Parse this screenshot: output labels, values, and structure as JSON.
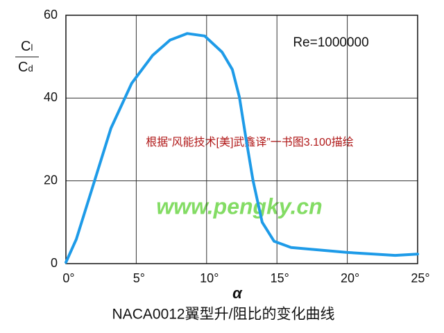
{
  "chart_data": {
    "type": "line",
    "title": "NACA0012翼型升/阻比的变化曲线",
    "x_label": "α",
    "y_label": {
      "numerator": {
        "base": "C",
        "sub": "l"
      },
      "denominator": {
        "base": "C",
        "sub": "d"
      }
    },
    "annotations": {
      "reynolds": "Re=1000000",
      "source": "根据“风能技术[美]武鑫译”一书图3.100描绘",
      "watermark": "www.pengky.cn"
    },
    "series": [
      {
        "color": "#1e9be8",
        "x": [
          0,
          0.74,
          1.97,
          3.2,
          4.68,
          6.16,
          7.4,
          8.63,
          9.86,
          11.1,
          11.83,
          12.33,
          12.8,
          13.3,
          13.95,
          14.8,
          16.0,
          20.0,
          23.4,
          25.0
        ],
        "values": [
          0.3,
          5.9,
          19.3,
          32.7,
          43.6,
          50.3,
          54,
          55.6,
          55,
          51.1,
          46.9,
          40.2,
          30.2,
          20.1,
          10,
          5.4,
          3.9,
          2.7,
          2.0,
          2.3
        ]
      }
    ],
    "xlim": [
      0,
      25
    ],
    "xticks": [
      {
        "value": 0,
        "label": "0°"
      },
      {
        "value": 5,
        "label": "5°"
      },
      {
        "value": 10,
        "label": "10°"
      },
      {
        "value": 15,
        "label": "15°"
      },
      {
        "value": 20,
        "label": "20°"
      },
      {
        "value": 25,
        "label": "25°"
      }
    ],
    "ylim": [
      0,
      60
    ],
    "yticks": [
      0,
      20,
      40,
      60
    ],
    "grid": true
  }
}
